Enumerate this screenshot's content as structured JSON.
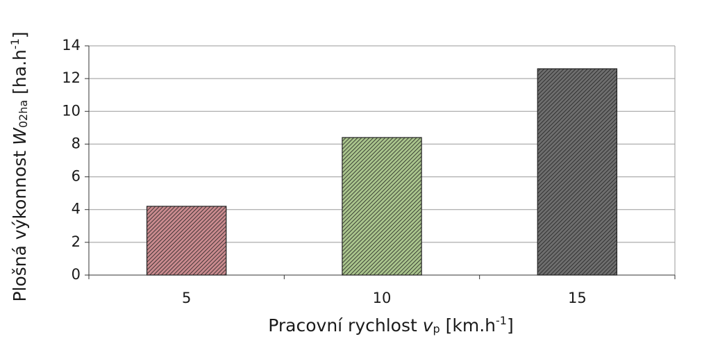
{
  "chart_data": {
    "type": "bar",
    "categories": [
      "5",
      "10",
      "15"
    ],
    "values": [
      4.2,
      8.4,
      12.6
    ],
    "colors": [
      "#c98a8e",
      "#a9c48c",
      "#6e6e6e"
    ],
    "x_label": [
      "Pracovní rychlost ",
      "v",
      "p",
      " [km.h",
      "-1",
      "]"
    ],
    "y_label": [
      "Plošná výkonnost ",
      "W",
      "02ha",
      " [ha.h",
      "-1",
      "]"
    ],
    "ylim": [
      0,
      14
    ],
    "yticks": [
      0,
      2,
      4,
      6,
      8,
      10,
      12,
      14
    ],
    "grid": true
  }
}
